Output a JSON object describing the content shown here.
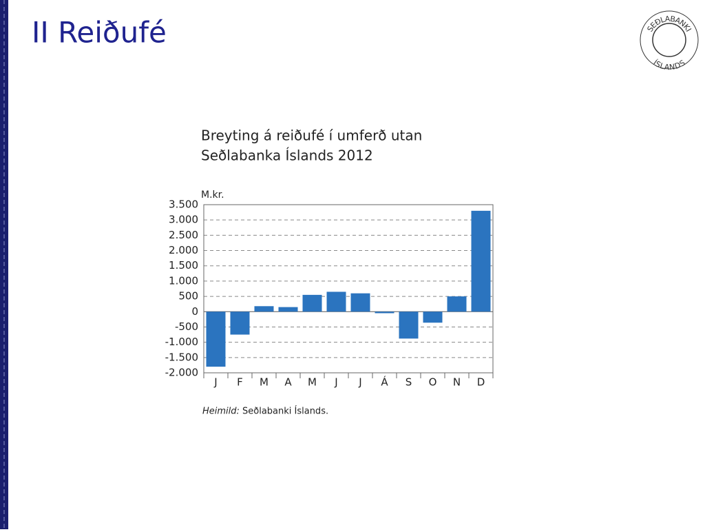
{
  "slide_title": "II Reiðufé",
  "logo": {
    "top": "SEÐLABANKI",
    "bottom": "ÍSLANDS"
  },
  "chart_data": {
    "type": "bar",
    "title": [
      "Breyting á reiðufé í umferð utan",
      "Seðlabanka Íslands 2012"
    ],
    "y_label": "M.kr.",
    "categories": [
      "J",
      "F",
      "M",
      "A",
      "M",
      "J",
      "J",
      "Á",
      "S",
      "O",
      "N",
      "D"
    ],
    "values": [
      -1800,
      -750,
      180,
      150,
      550,
      650,
      600,
      -50,
      -880,
      -360,
      500,
      3300
    ],
    "color": "#2b74bf",
    "ylim": [
      -2000,
      3500
    ],
    "yticks": [
      {
        "value": 3500,
        "label": "3.500"
      },
      {
        "value": 3000,
        "label": "3.000"
      },
      {
        "value": 2500,
        "label": "2.500"
      },
      {
        "value": 2000,
        "label": "2.000"
      },
      {
        "value": 1500,
        "label": "1.500"
      },
      {
        "value": 1000,
        "label": "1.000"
      },
      500,
      0,
      -500,
      {
        "value": -1000,
        "label": "-1.000"
      },
      {
        "value": -1500,
        "label": "-1.500"
      },
      {
        "value": -2000,
        "label": "-2.000"
      }
    ],
    "grid": true
  },
  "source": {
    "label": "Heimild:",
    "text": "Seðlabanki Íslands."
  }
}
